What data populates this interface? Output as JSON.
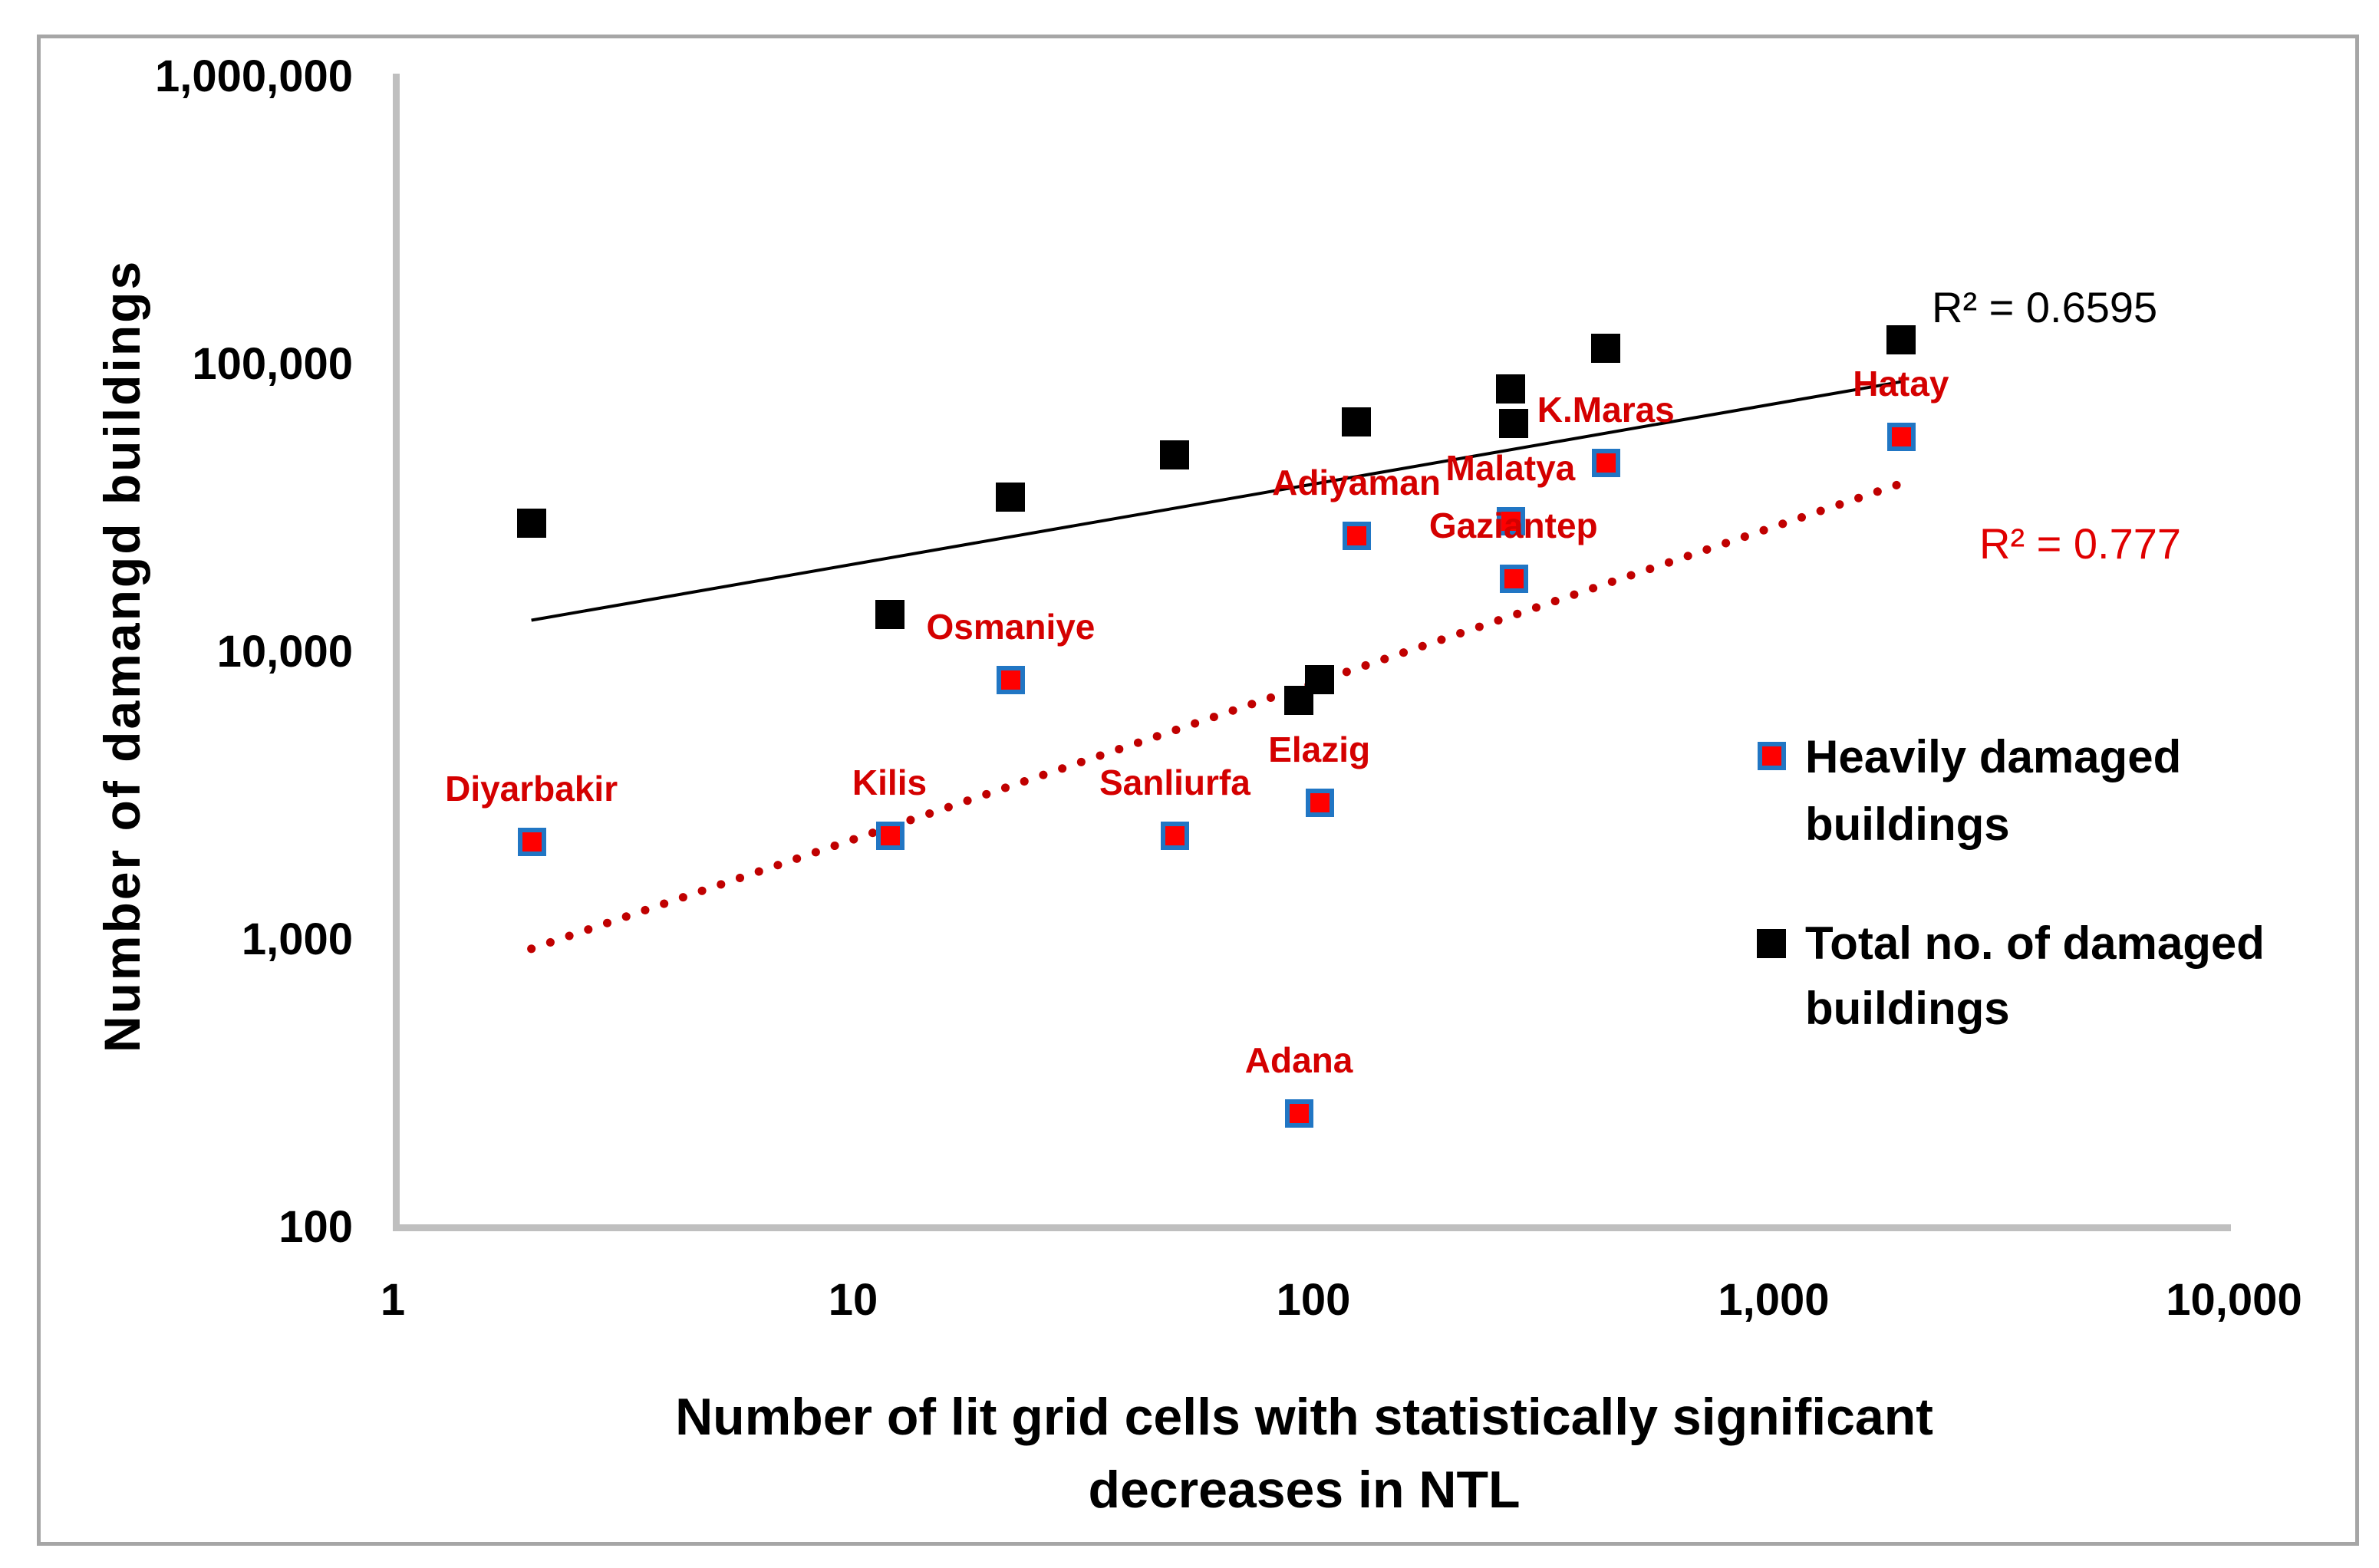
{
  "figure": {
    "background": "#FFFFFF",
    "border_color": "#A6A6A6",
    "axis_color": "#BFBFBF"
  },
  "colors": {
    "marker_red_fill": "#FF0000",
    "marker_blue_border": "#2176C4",
    "marker_black": "#000000",
    "city_label_red": "#D40000",
    "trend_red_dotted": "#C00000",
    "trend_black": "#000000",
    "r2_red_text": "#E00000"
  },
  "chart_data": {
    "type": "scatter",
    "title": "",
    "xlabel_line1": "Number of lit grid cells with statistically significant",
    "xlabel_line2": "decreases in NTL",
    "ylabel": "Number of damangd buildings",
    "x_axis": {
      "scale": "log",
      "range": [
        1,
        10000
      ],
      "values": [
        1,
        10,
        100,
        1000,
        10000
      ],
      "ticks": [
        "1",
        "10",
        "100",
        "1,000",
        "10,000"
      ],
      "grid": false
    },
    "y_axis": {
      "scale": "log",
      "range": [
        100,
        1000000
      ],
      "values": [
        100,
        1000,
        10000,
        100000,
        1000000
      ],
      "ticks": [
        "100",
        "1,000",
        "10,000",
        "100,000",
        "1,000,000"
      ],
      "grid": false
    },
    "series": [
      {
        "name": "Heavily damaged buildings",
        "marker": "red-square-blue-border"
      },
      {
        "name": "Total no. of damaged buildings",
        "marker": "black-square"
      }
    ],
    "cities": [
      {
        "name": "Diyarbakir",
        "lit_cells": 2,
        "heavily_damaged": 2200,
        "total_damaged": 28000
      },
      {
        "name": "Kilis",
        "lit_cells": 12,
        "heavily_damaged": 2300,
        "total_damaged": 13500
      },
      {
        "name": "Osmaniye",
        "lit_cells": 22,
        "heavily_damaged": 8000,
        "total_damaged": 34500
      },
      {
        "name": "Sanliurfa",
        "lit_cells": 50,
        "heavily_damaged": 2300,
        "total_damaged": 48500
      },
      {
        "name": "Adana",
        "lit_cells": 93,
        "heavily_damaged": 250,
        "total_damaged": 6800
      },
      {
        "name": "Elazig",
        "lit_cells": 103,
        "heavily_damaged": 3000,
        "total_damaged": 8000
      },
      {
        "name": "Adiyaman",
        "lit_cells": 124,
        "heavily_damaged": 25500,
        "total_damaged": 63000
      },
      {
        "name": "Malatya",
        "lit_cells": 268,
        "heavily_damaged": 28500,
        "total_damaged": 82000
      },
      {
        "name": "Gaziantep",
        "lit_cells": 272,
        "heavily_damaged": 18000,
        "total_damaged": 62500
      },
      {
        "name": "K.Maras",
        "lit_cells": 432,
        "heavily_damaged": 45500,
        "total_damaged": 114000
      },
      {
        "name": "Hatay",
        "lit_cells": 1890,
        "heavily_damaged": 56000,
        "total_damaged": 122000
      }
    ],
    "trendlines": [
      {
        "series": "Total no. of damaged buildings",
        "style": "solid",
        "color": "#000000",
        "x1": 2,
        "y1": 12900,
        "x2": 1890,
        "y2": 87000,
        "r2_label": "R² = 0.6595"
      },
      {
        "series": "Heavily damaged buildings",
        "style": "dotted",
        "color": "#C00000",
        "x1": 2,
        "y1": 930,
        "x2": 1890,
        "y2": 38500,
        "r2_label": "R² = 0.777"
      }
    ],
    "legend": {
      "position": "right-middle",
      "items": [
        {
          "line1": "Heavily damaged",
          "line2": "buildings",
          "marker": "red-square-blue-border"
        },
        {
          "line1": "Total no. of damaged",
          "line2": "buildings",
          "marker": "black-square"
        }
      ]
    }
  }
}
